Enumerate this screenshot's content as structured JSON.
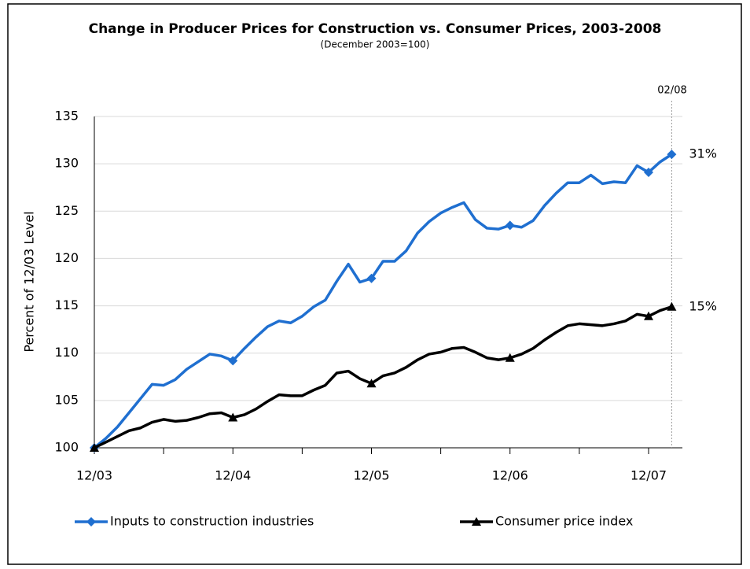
{
  "chart_data": {
    "type": "line",
    "title": "Change in Producer Prices for Construction vs. Consumer Prices, 2003-2008",
    "subtitle": "(December 2003=100)",
    "y_label": "Percent of 12/03 Level",
    "annotation": "02/08",
    "categories": [
      "12/03",
      null,
      null,
      null,
      null,
      null,
      null,
      null,
      null,
      null,
      null,
      null,
      "12/04",
      null,
      null,
      null,
      null,
      null,
      null,
      null,
      null,
      null,
      null,
      null,
      "12/05",
      null,
      null,
      null,
      null,
      null,
      null,
      null,
      null,
      null,
      null,
      null,
      "12/06",
      null,
      null,
      null,
      null,
      null,
      null,
      null,
      null,
      null,
      null,
      null,
      "12/07",
      null,
      null
    ],
    "marker_indices": [
      0,
      12,
      24,
      36,
      48,
      50
    ],
    "series": [
      {
        "name": "Inputs to construction industries",
        "color": "#1f6fd0",
        "marker": "diamond",
        "end_label": "31%",
        "values": [
          100,
          101,
          102.2,
          103.7,
          105.2,
          106.7,
          106.6,
          107.2,
          108.3,
          109.1,
          109.9,
          109.7,
          109.2,
          110.5,
          111.7,
          112.8,
          113.4,
          113.2,
          113.9,
          114.9,
          115.6,
          117.6,
          119.4,
          117.5,
          117.9,
          119.7,
          119.7,
          120.8,
          122.7,
          123.9,
          124.8,
          125.4,
          125.9,
          124.1,
          123.2,
          123.1,
          123.5,
          123.3,
          124.0,
          125.6,
          126.9,
          128.0,
          128.0,
          128.8,
          127.9,
          128.1,
          128.0,
          129.8,
          129.1,
          130.2,
          131.0
        ]
      },
      {
        "name": "Consumer price index",
        "color": "#000000",
        "marker": "triangle",
        "end_label": "15%",
        "values": [
          100,
          100.6,
          101.2,
          101.8,
          102.1,
          102.7,
          103.0,
          102.8,
          102.9,
          103.2,
          103.6,
          103.7,
          103.2,
          103.5,
          104.1,
          104.9,
          105.6,
          105.5,
          105.5,
          106.1,
          106.6,
          107.9,
          108.1,
          107.3,
          106.8,
          107.6,
          107.9,
          108.5,
          109.3,
          109.9,
          110.1,
          110.5,
          110.6,
          110.1,
          109.5,
          109.3,
          109.5,
          109.9,
          110.5,
          111.4,
          112.2,
          112.9,
          113.1,
          113.0,
          112.9,
          113.1,
          113.4,
          114.1,
          113.9,
          114.5,
          114.9
        ]
      }
    ],
    "ylim": [
      100,
      135
    ],
    "yticks": [
      100,
      105,
      110,
      115,
      120,
      125,
      130,
      135
    ],
    "grid": true
  }
}
